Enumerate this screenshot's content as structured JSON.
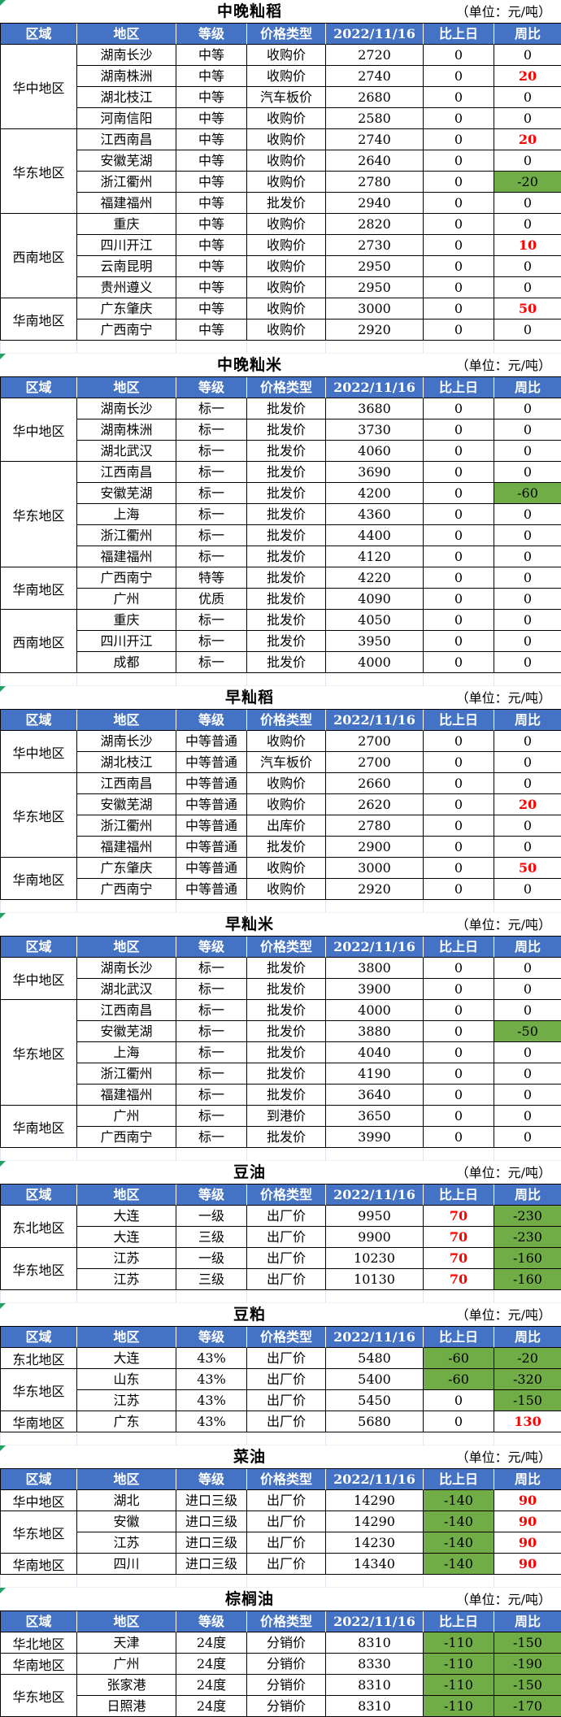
{
  "unit_label": "（单位：元/吨）",
  "columns": [
    "区域",
    "地区",
    "等级",
    "价格类型",
    "2022/11/16",
    "比上日",
    "周比"
  ],
  "colors": {
    "header_bg": "#4472C4",
    "positive_text": "#FF0000",
    "negative_bg": "#70AD47",
    "corner_flag_green": "#21A366",
    "gap_gridline": "#DFE5EE"
  },
  "tables": [
    {
      "title": "中晚籼稻",
      "groups": [
        {
          "region": "华中地区",
          "rows": [
            [
              "湖南长沙",
              "中等",
              "收购价",
              "2720",
              "0",
              "0"
            ],
            [
              "湖南株洲",
              "中等",
              "收购价",
              "2740",
              "0",
              "20"
            ],
            [
              "湖北枝江",
              "中等",
              "汽车板价",
              "2680",
              "0",
              "0"
            ],
            [
              "河南信阳",
              "中等",
              "收购价",
              "2580",
              "0",
              "0"
            ]
          ]
        },
        {
          "region": "华东地区",
          "rows": [
            [
              "江西南昌",
              "中等",
              "收购价",
              "2740",
              "0",
              "20"
            ],
            [
              "安徽芜湖",
              "中等",
              "收购价",
              "2640",
              "0",
              "0"
            ],
            [
              "浙江衢州",
              "中等",
              "收购价",
              "2780",
              "0",
              "-20"
            ],
            [
              "福建福州",
              "中等",
              "批发价",
              "2940",
              "0",
              "0"
            ]
          ]
        },
        {
          "region": "西南地区",
          "rows": [
            [
              "重庆",
              "中等",
              "收购价",
              "2820",
              "0",
              "0"
            ],
            [
              "四川开江",
              "中等",
              "收购价",
              "2730",
              "0",
              "10"
            ],
            [
              "云南昆明",
              "中等",
              "收购价",
              "2950",
              "0",
              "0"
            ],
            [
              "贵州遵义",
              "中等",
              "收购价",
              "2950",
              "0",
              "0"
            ]
          ]
        },
        {
          "region": "华南地区",
          "rows": [
            [
              "广东肇庆",
              "中等",
              "收购价",
              "3000",
              "0",
              "50"
            ],
            [
              "广西南宁",
              "中等",
              "收购价",
              "2920",
              "0",
              "0"
            ]
          ]
        }
      ]
    },
    {
      "title": "中晚籼米",
      "groups": [
        {
          "region": "华中地区",
          "rows": [
            [
              "湖南长沙",
              "标一",
              "批发价",
              "3680",
              "0",
              "0"
            ],
            [
              "湖南株洲",
              "标一",
              "批发价",
              "3730",
              "0",
              "0"
            ],
            [
              "湖北武汉",
              "标一",
              "批发价",
              "4060",
              "0",
              "0"
            ]
          ]
        },
        {
          "region": "华东地区",
          "rows": [
            [
              "江西南昌",
              "标一",
              "批发价",
              "3690",
              "0",
              "0"
            ],
            [
              "安徽芜湖",
              "标一",
              "批发价",
              "4200",
              "0",
              "-60"
            ],
            [
              "上海",
              "标一",
              "批发价",
              "4360",
              "0",
              "0"
            ],
            [
              "浙江衢州",
              "标一",
              "批发价",
              "4400",
              "0",
              "0"
            ],
            [
              "福建福州",
              "标一",
              "批发价",
              "4120",
              "0",
              "0"
            ]
          ]
        },
        {
          "region": "华南地区",
          "rows": [
            [
              "广西南宁",
              "特等",
              "批发价",
              "4220",
              "0",
              "0"
            ],
            [
              "广州",
              "优质",
              "批发价",
              "4090",
              "0",
              "0"
            ]
          ]
        },
        {
          "region": "西南地区",
          "rows": [
            [
              "重庆",
              "标一",
              "批发价",
              "4050",
              "0",
              "0"
            ],
            [
              "四川开江",
              "标一",
              "批发价",
              "3950",
              "0",
              "0"
            ],
            [
              "成都",
              "标一",
              "批发价",
              "4000",
              "0",
              "0"
            ]
          ]
        }
      ]
    },
    {
      "title": "早籼稻",
      "groups": [
        {
          "region": "华中地区",
          "rows": [
            [
              "湖南长沙",
              "中等普通",
              "收购价",
              "2700",
              "0",
              "0"
            ],
            [
              "湖北枝江",
              "中等普通",
              "汽车板价",
              "2700",
              "0",
              "0"
            ]
          ]
        },
        {
          "region": "华东地区",
          "rows": [
            [
              "江西南昌",
              "中等普通",
              "收购价",
              "2660",
              "0",
              "0"
            ],
            [
              "安徽芜湖",
              "中等普通",
              "收购价",
              "2620",
              "0",
              "20"
            ],
            [
              "浙江衢州",
              "中等普通",
              "出库价",
              "2780",
              "0",
              "0"
            ],
            [
              "福建福州",
              "中等普通",
              "批发价",
              "2900",
              "0",
              "0"
            ]
          ]
        },
        {
          "region": "华南地区",
          "rows": [
            [
              "广东肇庆",
              "中等普通",
              "收购价",
              "3000",
              "0",
              "50"
            ],
            [
              "广西南宁",
              "中等普通",
              "收购价",
              "2920",
              "0",
              "0"
            ]
          ]
        }
      ]
    },
    {
      "title": "早籼米",
      "groups": [
        {
          "region": "华中地区",
          "rows": [
            [
              "湖南长沙",
              "标一",
              "批发价",
              "3800",
              "0",
              "0"
            ],
            [
              "湖北武汉",
              "标一",
              "批发价",
              "3900",
              "0",
              "0"
            ]
          ]
        },
        {
          "region": "华东地区",
          "rows": [
            [
              "江西南昌",
              "标一",
              "批发价",
              "4000",
              "0",
              "0"
            ],
            [
              "安徽芜湖",
              "标一",
              "批发价",
              "3880",
              "0",
              "-50"
            ],
            [
              "上海",
              "标一",
              "批发价",
              "4040",
              "0",
              "0"
            ],
            [
              "浙江衢州",
              "标一",
              "批发价",
              "4190",
              "0",
              "0"
            ],
            [
              "福建福州",
              "标一",
              "批发价",
              "3640",
              "0",
              "0"
            ]
          ]
        },
        {
          "region": "华南地区",
          "rows": [
            [
              "广州",
              "标一",
              "到港价",
              "3650",
              "0",
              "0"
            ],
            [
              "广西南宁",
              "标一",
              "批发价",
              "3990",
              "0",
              "0"
            ]
          ]
        }
      ]
    },
    {
      "title": "豆油",
      "groups": [
        {
          "region": "东北地区",
          "rows": [
            [
              "大连",
              "一级",
              "出厂价",
              "9950",
              "70",
              "-230"
            ],
            [
              "大连",
              "三级",
              "出厂价",
              "9900",
              "70",
              "-230"
            ]
          ]
        },
        {
          "region": "华东地区",
          "rows": [
            [
              "江苏",
              "一级",
              "出厂价",
              "10230",
              "70",
              "-160"
            ],
            [
              "江苏",
              "三级",
              "出厂价",
              "10130",
              "70",
              "-160"
            ]
          ]
        }
      ]
    },
    {
      "title": "豆粕",
      "groups": [
        {
          "region": "东北地区",
          "rows": [
            [
              "大连",
              "43%",
              "出厂价",
              "5480",
              "-60",
              "-20"
            ]
          ]
        },
        {
          "region": "华东地区",
          "rows": [
            [
              "山东",
              "43%",
              "出厂价",
              "5400",
              "-60",
              "-320"
            ],
            [
              "江苏",
              "43%",
              "出厂价",
              "5450",
              "0",
              "-150"
            ]
          ]
        },
        {
          "region": "华南地区",
          "rows": [
            [
              "广东",
              "43%",
              "出厂价",
              "5680",
              "0",
              "130"
            ]
          ]
        }
      ]
    },
    {
      "title": "菜油",
      "groups": [
        {
          "region": "华中地区",
          "rows": [
            [
              "湖北",
              "进口三级",
              "出厂价",
              "14290",
              "-140",
              "90"
            ]
          ]
        },
        {
          "region": "华东地区",
          "rows": [
            [
              "安徽",
              "进口三级",
              "出厂价",
              "14290",
              "-140",
              "90"
            ],
            [
              "江苏",
              "进口三级",
              "出厂价",
              "14230",
              "-140",
              "90"
            ]
          ]
        },
        {
          "region": "华南地区",
          "rows": [
            [
              "四川",
              "进口三级",
              "出厂价",
              "14340",
              "-140",
              "90"
            ]
          ]
        }
      ]
    },
    {
      "title": "棕榈油",
      "groups": [
        {
          "region": "华北地区",
          "rows": [
            [
              "天津",
              "24度",
              "分销价",
              "8310",
              "-110",
              "-150"
            ]
          ]
        },
        {
          "region": "华南地区",
          "rows": [
            [
              "广州",
              "24度",
              "分销价",
              "8330",
              "-110",
              "-190"
            ]
          ]
        },
        {
          "region": "华东地区",
          "rows": [
            [
              "张家港",
              "24度",
              "分销价",
              "8310",
              "-110",
              "-150"
            ],
            [
              "日照港",
              "24度",
              "分销价",
              "8310",
              "-110",
              "-170"
            ]
          ]
        }
      ]
    }
  ]
}
